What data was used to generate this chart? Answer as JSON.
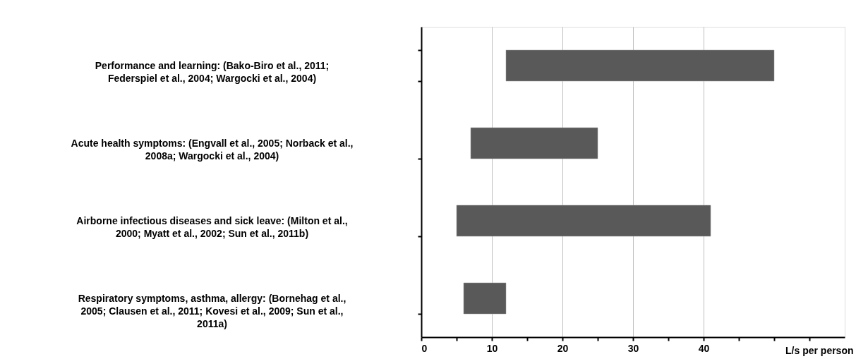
{
  "chart_data": {
    "type": "bar",
    "orientation": "horizontal",
    "categories": [
      "Performance and learning:  (Bako-Biro et al., 2011;\nFederspiel et al., 2004; Wargocki et al., 2004)",
      "Acute health symptoms: (Engvall et al., 2005; Norback et al.,\n2008a; Wargocki et al., 2004)",
      "Airborne infectious diseases and sick leave: (Milton et al.,\n2000; Myatt et al., 2002; Sun et al., 2011b)",
      "Respiratory symptoms, asthma, allergy: (Bornehag et al.,\n2005; Clausen et al., 2011; Kovesi et al., 2009; Sun et al.,\n2011a)"
    ],
    "base": [
      12,
      7,
      5,
      6
    ],
    "values": [
      38,
      18,
      36,
      6
    ],
    "color": "#595959",
    "xlabel": "L/s per person",
    "xlim": [
      0,
      60
    ],
    "xticks": [
      0,
      {
        "value": 5,
        "label": null
      },
      10,
      {
        "value": 15,
        "label": null
      },
      20,
      {
        "value": 25,
        "label": null
      },
      30,
      {
        "value": 35,
        "label": null
      },
      40,
      {
        "value": 45,
        "label": null
      },
      {
        "value": 50,
        "label": null
      },
      {
        "value": 55,
        "label": null
      }
    ],
    "grid": "x"
  }
}
